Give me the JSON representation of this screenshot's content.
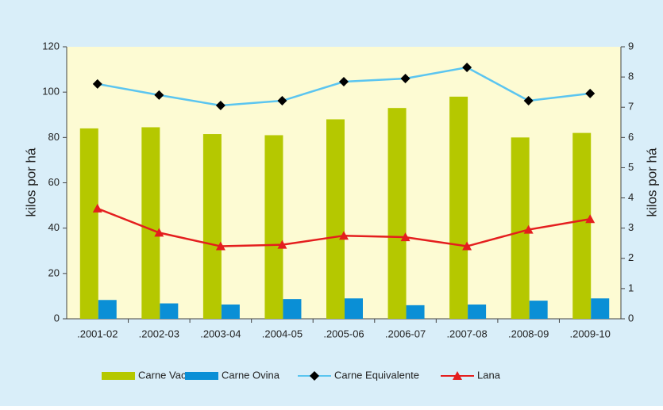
{
  "chart_data": {
    "type": "bar-line",
    "categories": [
      ".2001-02",
      ".2002-03",
      ".2003-04",
      ".2004-05",
      ".2005-06",
      ".2006-07",
      ".2007-08",
      ".2008-09",
      ".2009-10"
    ],
    "series": [
      {
        "name": "Carne Vacuna",
        "type": "bar",
        "color": "#b5c800",
        "values": [
          84,
          84.5,
          81.5,
          81,
          88,
          93,
          98,
          80,
          82
        ]
      },
      {
        "name": "Carne Ovina",
        "type": "bar",
        "color": "#0a8fd6",
        "values": [
          8.3,
          6.8,
          6.3,
          8.7,
          9,
          6,
          6.3,
          8,
          9
        ]
      },
      {
        "name": "Carne Equivalente",
        "type": "line",
        "marker": "diamond",
        "color": "#5bc5f0",
        "values": [
          103.6,
          98.7,
          94.1,
          96.2,
          104.6,
          106,
          110.9,
          96.2,
          99.4
        ]
      },
      {
        "name": "Lana",
        "type": "line",
        "marker": "triangle",
        "color": "#e41e1e",
        "axis": "y2",
        "values": [
          3.65,
          2.85,
          2.4,
          2.45,
          2.75,
          2.7,
          2.4,
          2.95,
          3.3
        ]
      }
    ],
    "y_label": "kilos por há",
    "y2_label": "kilos por há",
    "ylim": [
      0,
      120
    ],
    "yticks": [
      0,
      20,
      40,
      60,
      80,
      100,
      120
    ],
    "y2lim": [
      0,
      9
    ],
    "y2ticks": [
      0,
      1,
      2,
      3,
      4,
      5,
      6,
      7,
      8,
      9
    ]
  }
}
